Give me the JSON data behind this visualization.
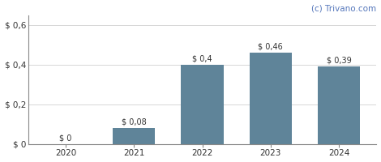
{
  "categories": [
    "2020",
    "2021",
    "2022",
    "2023",
    "2024"
  ],
  "values": [
    0,
    0.08,
    0.4,
    0.46,
    0.39
  ],
  "labels": [
    "$ 0",
    "$ 0,08",
    "$ 0,4",
    "$ 0,46",
    "$ 0,39"
  ],
  "bar_color": "#5f8499",
  "ylim": [
    0,
    0.65
  ],
  "yticks": [
    0,
    0.2,
    0.4,
    0.6
  ],
  "ytick_labels": [
    "$ 0",
    "$ 0,2",
    "$ 0,4",
    "$ 0,6"
  ],
  "watermark": "(c) Trivano.com",
  "background_color": "#ffffff",
  "grid_color": "#d0d0d0",
  "bar_width": 0.62,
  "label_fontsize": 7.0,
  "tick_fontsize": 7.5,
  "watermark_fontsize": 7.5,
  "watermark_color": "#5577bb"
}
